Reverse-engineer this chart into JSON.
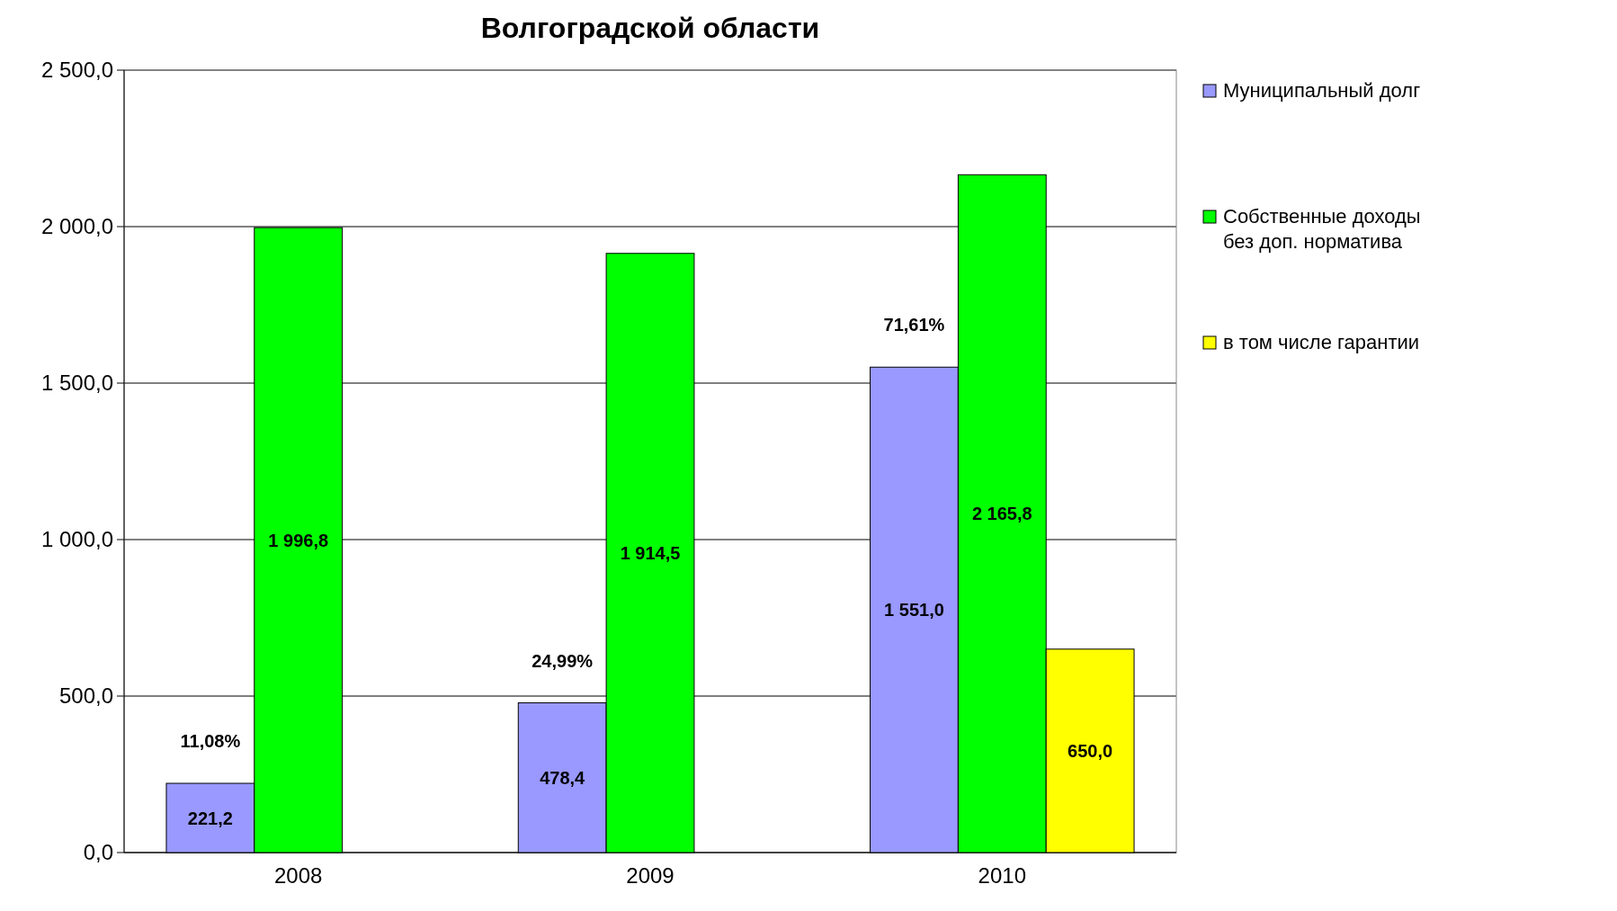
{
  "chart_data": {
    "type": "bar",
    "title": "Волгоградской области",
    "categories": [
      "2008",
      "2009",
      "2010"
    ],
    "series": [
      {
        "name": "Муниципальный долг",
        "color": "#9999ff",
        "values": [
          221.2,
          478.4,
          1551.0
        ],
        "value_labels": [
          "221,2",
          "478,4",
          "1 551,0"
        ]
      },
      {
        "name": "Собственные доходы без доп. норматива",
        "color": "#00ff00",
        "values": [
          1996.8,
          1914.5,
          2165.8
        ],
        "value_labels": [
          "1 996,8",
          "1 914,5",
          "2 165,8"
        ]
      },
      {
        "name": "в том числе гарантии",
        "color": "#ffff00",
        "values": [
          null,
          null,
          650.0
        ],
        "value_labels": [
          null,
          null,
          "650,0"
        ]
      }
    ],
    "ylim": [
      0,
      2500
    ],
    "yticks": [
      {
        "value": 0,
        "label": "0,0"
      },
      {
        "value": 500,
        "label": "500,0"
      },
      {
        "value": 1000,
        "label": "1 000,0"
      },
      {
        "value": 1500,
        "label": "1 500,0"
      },
      {
        "value": 2000,
        "label": "2 000,0"
      },
      {
        "value": 2500,
        "label": "2 500,0"
      }
    ],
    "grid": "y",
    "legend": "right",
    "annotations": [
      "11,08%",
      "24,99%",
      "71,61%"
    ]
  }
}
